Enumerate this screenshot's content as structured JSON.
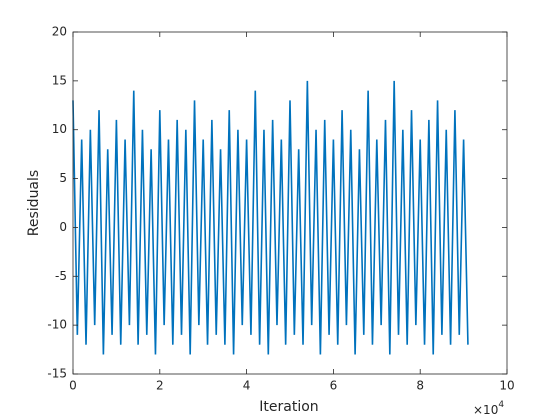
{
  "chart_data": {
    "type": "line",
    "x_label": "Iteration",
    "y_label": "Residuals",
    "x_multiplier": {
      "base": "×10",
      "power": "4"
    },
    "xlim": [
      0,
      100000
    ],
    "xticks": [
      {
        "value": 0,
        "label": "0"
      },
      {
        "value": 20000,
        "label": "2"
      },
      {
        "value": 40000,
        "label": "4"
      },
      {
        "value": 60000,
        "label": "6"
      },
      {
        "value": 80000,
        "label": "8"
      },
      {
        "value": 100000,
        "label": "10"
      }
    ],
    "ylim": [
      -15,
      20
    ],
    "yticks": [
      -15,
      -10,
      -5,
      0,
      5,
      10,
      15,
      20
    ],
    "box": true,
    "x": [
      0,
      1000,
      2000,
      3000,
      4000,
      5000,
      6000,
      7000,
      8000,
      9000,
      10000,
      11000,
      12000,
      13000,
      14000,
      15000,
      16000,
      17000,
      18000,
      19000,
      20000,
      21000,
      22000,
      23000,
      24000,
      25000,
      26000,
      27000,
      28000,
      29000,
      30000,
      31000,
      32000,
      33000,
      34000,
      35000,
      36000,
      37000,
      38000,
      39000,
      40000,
      41000,
      42000,
      43000,
      44000,
      45000,
      46000,
      47000,
      48000,
      49000,
      50000,
      51000,
      52000,
      53000,
      54000,
      55000,
      56000,
      57000,
      58000,
      59000,
      60000,
      61000,
      62000,
      63000,
      64000,
      65000,
      66000,
      67000,
      68000,
      69000,
      70000,
      71000,
      72000,
      73000,
      74000,
      75000,
      76000,
      77000,
      78000,
      79000,
      80000,
      81000,
      82000,
      83000,
      84000,
      85000,
      86000,
      87000,
      88000,
      89000,
      90000,
      91000
    ],
    "series": [
      {
        "color": "#0072bd",
        "values": [
          13,
          -11,
          9,
          -12,
          10,
          -10,
          12,
          -13,
          8,
          -11,
          11,
          -12,
          9,
          -10,
          14,
          -12,
          10,
          -11,
          8,
          -13,
          12,
          -10,
          9,
          -12,
          11,
          -11,
          10,
          -13,
          13,
          -10,
          9,
          -12,
          11,
          -11,
          8,
          -12,
          12,
          -13,
          10,
          -10,
          9,
          -11,
          14,
          -12,
          10,
          -13,
          11,
          -10,
          9,
          -12,
          13,
          -11,
          8,
          -12,
          15,
          -10,
          10,
          -13,
          11,
          -11,
          9,
          -12,
          12,
          -10,
          10,
          -13,
          8,
          -11,
          14,
          -12,
          9,
          -10,
          11,
          -13,
          15,
          -11,
          10,
          -12,
          12,
          -10,
          9,
          -12,
          11,
          -13,
          13,
          -11,
          10,
          -12,
          12,
          -11,
          9,
          -12
        ]
      }
    ]
  }
}
